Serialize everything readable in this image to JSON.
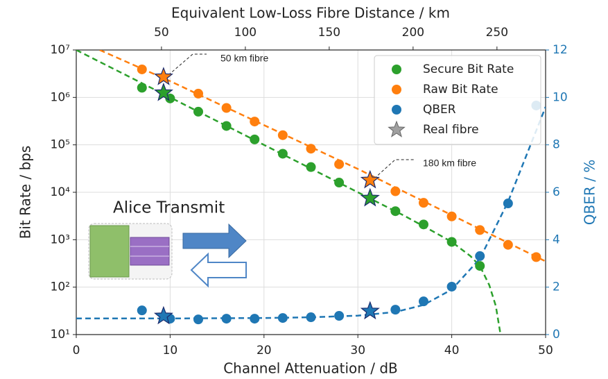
{
  "chart_data": {
    "type": "scatter",
    "xlabel": "Channel Attenuation / dB",
    "ylabel": "Bit Rate / bps",
    "y2label": "QBER / %",
    "x2label": "Equivalent Low-Loss Fibre Distance / km",
    "xlim": [
      0,
      50
    ],
    "xticks": [
      0,
      10,
      20,
      30,
      40,
      50
    ],
    "x2lim": [
      -0.8,
      279
    ],
    "x2ticks": [
      50,
      100,
      150,
      200,
      250
    ],
    "ylim": [
      10,
      10000000
    ],
    "ylog": true,
    "yticks": [
      {
        "value": 10,
        "label": "10¹"
      },
      {
        "value": 100,
        "label": "10²"
      },
      {
        "value": 1000,
        "label": "10³"
      },
      {
        "value": 10000,
        "label": "10⁴"
      },
      {
        "value": 100000,
        "label": "10⁵"
      },
      {
        "value": 1000000,
        "label": "10⁶"
      },
      {
        "value": 10000000,
        "label": "10⁷"
      }
    ],
    "y2lim": [
      0,
      12
    ],
    "y2ticks": [
      0,
      2,
      4,
      6,
      8,
      10,
      12
    ],
    "y2color": "#1f77b4",
    "grid": true,
    "legend": "upper right",
    "series": [
      {
        "name": "Secure Bit Rate",
        "color": "#2ca02c",
        "x": [
          7,
          10,
          13,
          16,
          19,
          22,
          25,
          28,
          34,
          37,
          40,
          43
        ],
        "values": [
          1600000,
          950000,
          500000,
          250000,
          130000,
          65000,
          34000,
          16000,
          4000,
          2100,
          900,
          280
        ],
        "highlight_x": [
          9.3,
          31.3
        ],
        "highlight_values": [
          1250000,
          7500
        ]
      },
      {
        "name": "Raw Bit Rate",
        "color": "#ff7f0e",
        "x": [
          7,
          13,
          16,
          19,
          22,
          25,
          28,
          34,
          37,
          40,
          43,
          46,
          49
        ],
        "values": [
          3900000,
          1200000,
          600000,
          310000,
          160000,
          83000,
          39000,
          10500,
          6000,
          3100,
          1600,
          780,
          430
        ],
        "highlight_x": [
          9.3,
          31.3
        ],
        "highlight_values": [
          2700000,
          18000
        ]
      },
      {
        "name": "QBER",
        "color": "#1f77b4",
        "axis": "y2",
        "x": [
          7,
          10,
          13,
          16,
          19,
          22,
          25,
          28,
          34,
          37,
          40,
          43,
          46,
          49
        ],
        "values": [
          1.02,
          0.67,
          0.64,
          0.67,
          0.67,
          0.7,
          0.73,
          0.79,
          1.05,
          1.4,
          2.02,
          3.31,
          5.53,
          9.66
        ],
        "highlight_x": [
          9.3,
          31.3
        ],
        "highlight_values": [
          0.78,
          0.99
        ]
      }
    ],
    "highlight_legend": "Real fibre",
    "highlight_color": "#a0a0a0",
    "fits": [
      {
        "color": "#2ca02c",
        "x": [
          0,
          5,
          10,
          15,
          20,
          25,
          30,
          35,
          38,
          40,
          42,
          43,
          44,
          44.7,
          45.2
        ],
        "values": [
          10000000,
          3160000,
          1000000,
          316000,
          100000,
          31600,
          10000,
          3160,
          1500,
          900,
          450,
          280,
          110,
          40,
          10
        ]
      },
      {
        "color": "#ff7f0e",
        "x": [
          2.5,
          10,
          20,
          30,
          40,
          50
        ],
        "values": [
          10000000,
          2200000,
          260000,
          31000,
          3300,
          350
        ]
      },
      {
        "color": "#1f77b4",
        "axis": "y2",
        "x": [
          0,
          10,
          20,
          25,
          30,
          34,
          37,
          40,
          43,
          46,
          48,
          50
        ],
        "values": [
          0.68,
          0.68,
          0.7,
          0.73,
          0.8,
          0.95,
          1.25,
          1.9,
          3.2,
          5.6,
          7.6,
          9.6
        ]
      }
    ],
    "annotations": [
      "50 km fibre",
      "180 km fibre",
      "Alice Transmit"
    ]
  }
}
